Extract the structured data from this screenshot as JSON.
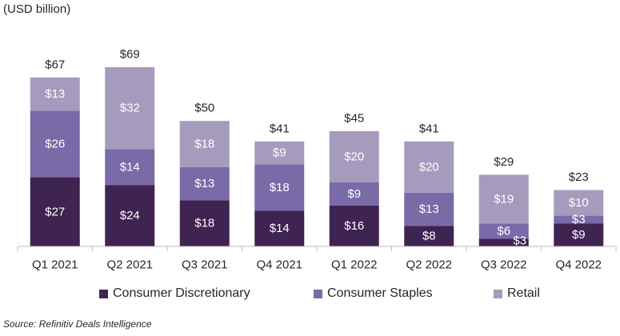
{
  "unit_label": "(USD billion)",
  "source": "Source: Refinitiv Deals Intelligence",
  "colors": {
    "consumer_discretionary": "#3f2350",
    "consumer_staples": "#7a6aa8",
    "retail": "#a69bbd"
  },
  "chart_data": {
    "type": "bar",
    "stacked": true,
    "categories": [
      "Q1 2021",
      "Q2 2021",
      "Q3 2021",
      "Q4 2021",
      "Q1 2022",
      "Q2 2022",
      "Q3 2022",
      "Q4 2022"
    ],
    "series": [
      {
        "name": "Consumer Discretionary",
        "values": [
          27,
          24,
          18,
          14,
          16,
          8,
          3,
          9
        ]
      },
      {
        "name": "Consumer Staples",
        "values": [
          26,
          14,
          13,
          18,
          9,
          13,
          6,
          3
        ]
      },
      {
        "name": "Retail",
        "values": [
          13,
          32,
          18,
          9,
          20,
          20,
          19,
          10
        ]
      }
    ],
    "segment_labels": [
      [
        "$27",
        "$24",
        "$18",
        "$14",
        "$16",
        "$8",
        "$3",
        "$9"
      ],
      [
        "$26",
        "$14",
        "$13",
        "$18",
        "$9",
        "$13",
        "$6",
        "$3"
      ],
      [
        "$13",
        "$32",
        "$18",
        "$9",
        "$20",
        "$20",
        "$19",
        "$10"
      ]
    ],
    "totals": [
      "$67",
      "$69",
      "$50",
      "$41",
      "$45",
      "$41",
      "$29",
      "$23"
    ],
    "ylim": [
      0,
      70
    ],
    "grid": false,
    "legend_position": "bottom"
  }
}
